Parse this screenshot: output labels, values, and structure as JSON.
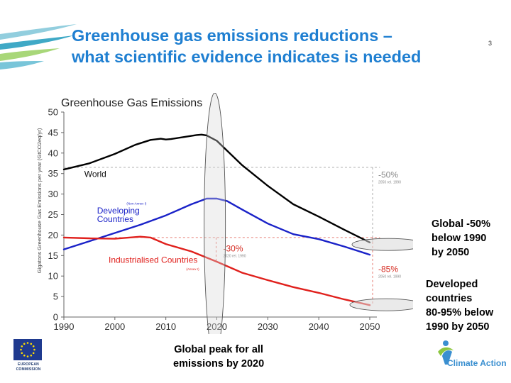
{
  "slide": {
    "title_line1": "Greenhouse gas emissions reductions –",
    "title_line2": "what scientific evidence indicates is needed",
    "page_number": "3",
    "note_global": [
      "Global -50%",
      "below 1990",
      "by 2050"
    ],
    "note_developed": [
      "Developed",
      "countries",
      "80-95% below",
      "1990 by 2050"
    ],
    "note_peak": [
      "Global peak for all",
      "emissions by 2020"
    ],
    "eu_logo_text": [
      "EUROPEAN",
      "COMMISSION"
    ],
    "climate_action_text": "Climate Action",
    "colors": {
      "title": "#1f7fd1",
      "world": "#000000",
      "developing": "#1a22c8",
      "industrialised": "#e0201c"
    }
  },
  "chart_data": {
    "type": "line",
    "title": "Greenhouse Gas Emissions",
    "ylabel": "Gigatons Greenhouse Gas Emissions per year (GtCO2eq/yr)",
    "xlabel": "",
    "xlim": [
      1990,
      2050
    ],
    "ylim": [
      0,
      50
    ],
    "x_ticks": [
      1990,
      2000,
      2010,
      2020,
      2030,
      2040,
      2050
    ],
    "y_ticks": [
      0,
      5,
      10,
      15,
      20,
      25,
      30,
      35,
      40,
      45,
      50
    ],
    "grid": false,
    "series": [
      {
        "name": "World",
        "sublabel": "",
        "color": "#000000",
        "x": [
          1990,
          1995,
          2000,
          2004,
          2007,
          2009,
          2010,
          2011,
          2013,
          2016,
          2017,
          2018,
          2020,
          2025,
          2030,
          2035,
          2040,
          2045,
          2050
        ],
        "y": [
          36.0,
          37.5,
          39.8,
          42.0,
          43.2,
          43.5,
          43.3,
          43.4,
          43.8,
          44.4,
          44.5,
          44.3,
          43.0,
          37.0,
          32.0,
          27.5,
          24.5,
          21.3,
          18.2
        ]
      },
      {
        "name": "Developing Countries",
        "sublabel": "(Non-Annex I)",
        "color": "#1a22c8",
        "x": [
          1990,
          1995,
          2000,
          2005,
          2010,
          2015,
          2018,
          2020,
          2022,
          2025,
          2030,
          2035,
          2040,
          2045,
          2050
        ],
        "y": [
          16.5,
          18.5,
          20.5,
          22.5,
          24.8,
          27.5,
          28.9,
          28.9,
          28.3,
          26.2,
          22.8,
          20.2,
          19.0,
          17.2,
          15.2
        ]
      },
      {
        "name": "Industrialised Countries",
        "sublabel": "(Annex I)",
        "color": "#e0201c",
        "x": [
          1990,
          1995,
          2000,
          2005,
          2007,
          2010,
          2015,
          2020,
          2025,
          2030,
          2035,
          2040,
          2045,
          2050
        ],
        "y": [
          19.4,
          19.2,
          19.1,
          19.6,
          19.4,
          17.8,
          16.0,
          13.5,
          10.8,
          9.0,
          7.3,
          5.9,
          4.3,
          2.9
        ]
      }
    ],
    "reference_lines": [
      {
        "label": "-50%",
        "sublabel": "2050 rel. 1990",
        "y_ref": 36.5,
        "color": "#999999"
      },
      {
        "label": "-30%",
        "sublabel": "2020 rel. 1990",
        "y_ref": 19.4,
        "color": "#e05a4f"
      },
      {
        "label": "-85%",
        "sublabel": "2050 rel. 1990",
        "y_ref": 19.4,
        "color": "#e05a4f"
      }
    ]
  }
}
